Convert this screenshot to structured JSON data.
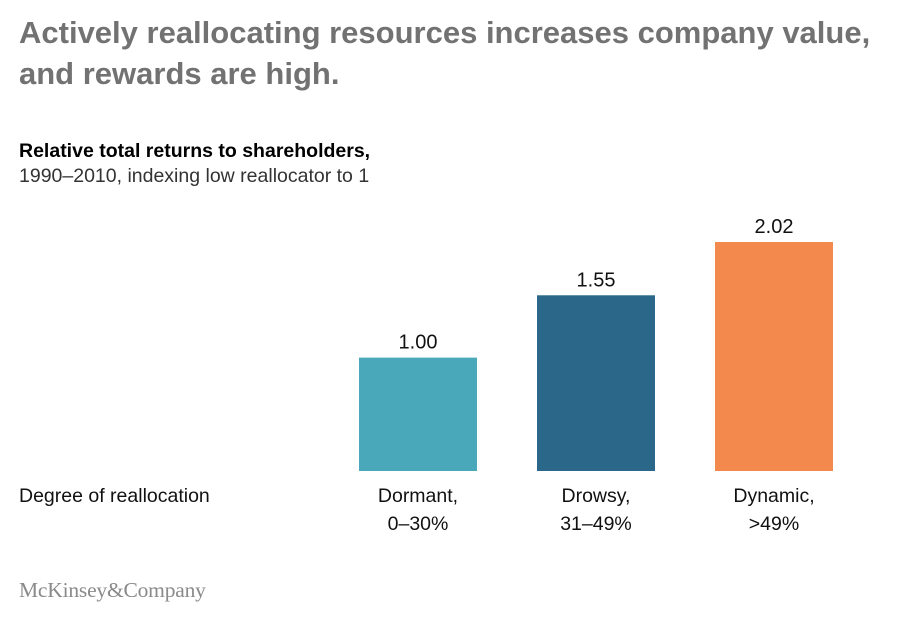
{
  "headline": "Actively reallocating resources increases company value, and rewards are high.",
  "chart_data": {
    "type": "bar",
    "title": "Relative total returns to shareholders,",
    "subtitle": "1990–2010, indexing low reallocator to 1",
    "xlabel": "Degree of reallocation",
    "ylabel": "",
    "categories": [
      [
        "Dormant,",
        "0–30%"
      ],
      [
        "Drowsy,",
        "31–49%"
      ],
      [
        "Dynamic,",
        ">49%"
      ]
    ],
    "values": [
      1.0,
      1.55,
      2.02
    ],
    "value_labels": [
      "1.00",
      "1.55",
      "2.02"
    ],
    "colors": [
      "#4aa8bb",
      "#2a6788",
      "#f4894d"
    ],
    "ylim": [
      0,
      2.02
    ],
    "grid": false,
    "legend": "none"
  },
  "footer": {
    "logo": "McKinsey&Company"
  }
}
